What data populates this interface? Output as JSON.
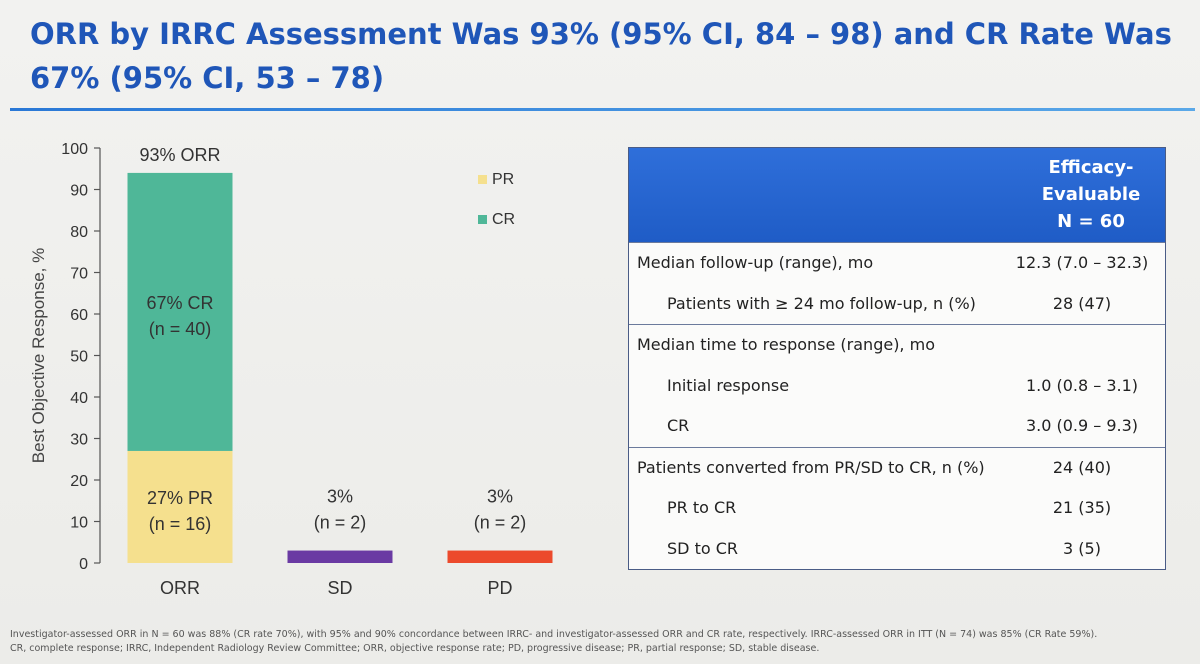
{
  "slide": {
    "title": "ORR by IRRC Assessment Was 93% (95% CI, 84 – 98) and CR Rate Was 67% (95% CI, 53 – 78)",
    "footnote_line1": "Investigator-assessed ORR in N = 60 was 88% (CR rate 70%), with 95% and 90% concordance between IRRC- and investigator-assessed ORR and CR rate, respectively. IRRC-assessed ORR in ITT (N = 74) was 85% (CR Rate 59%).",
    "footnote_line2": "CR, complete response; IRRC, Independent Radiology Review Committee; ORR, objective response rate; PD, progressive disease; PR, partial response; SD, stable disease."
  },
  "chart_data": {
    "type": "bar",
    "stacked": true,
    "ylabel": "Best Objective Response, %",
    "ylim": [
      0,
      100
    ],
    "yticks": [
      0,
      10,
      20,
      30,
      40,
      50,
      60,
      70,
      80,
      90,
      100
    ],
    "categories": [
      "ORR",
      "SD",
      "PD"
    ],
    "series": [
      {
        "name": "PR",
        "color": "#f5e08e",
        "values": [
          27,
          0,
          0
        ]
      },
      {
        "name": "CR",
        "color": "#4fb798",
        "values": [
          67,
          0,
          0
        ]
      },
      {
        "name": "",
        "color": "#6a3aa3",
        "values": [
          0,
          3,
          0
        ]
      },
      {
        "name": "",
        "color": "#ec4a2c",
        "values": [
          0,
          0,
          3
        ]
      }
    ],
    "legend": [
      "PR",
      "CR"
    ],
    "legend_position": "top-right",
    "segment_labels": [
      {
        "category": "ORR",
        "series": "PR",
        "line1": "27% PR",
        "line2": "(n = 16)"
      },
      {
        "category": "ORR",
        "series": "CR",
        "line1": "67% CR",
        "line2": "(n = 40)"
      }
    ],
    "top_labels": [
      {
        "category": "ORR",
        "line1": "93% ORR",
        "line2": ""
      },
      {
        "category": "SD",
        "line1": "3%",
        "line2": "(n = 2)"
      },
      {
        "category": "PD",
        "line1": "3%",
        "line2": "(n = 2)"
      }
    ]
  },
  "table": {
    "header": [
      "Efficacy-",
      "Evaluable",
      "N = 60"
    ],
    "rows": [
      {
        "label": "Median follow-up (range), mo",
        "value": "12.3 (7.0 – 32.3)",
        "indent": false,
        "separator": true
      },
      {
        "label": "Patients with ≥ 24 mo follow-up, n (%)",
        "value": "28 (47)",
        "indent": true,
        "separator": false
      },
      {
        "label": "Median time to response (range), mo",
        "value": "",
        "indent": false,
        "separator": true
      },
      {
        "label": "Initial response",
        "value": "1.0 (0.8 – 3.1)",
        "indent": true,
        "separator": false
      },
      {
        "label": "CR",
        "value": "3.0 (0.9 – 9.3)",
        "indent": true,
        "separator": false
      },
      {
        "label": "Patients converted from PR/SD to CR, n (%)",
        "value": "24 (40)",
        "indent": false,
        "separator": true
      },
      {
        "label": "PR to CR",
        "value": "21 (35)",
        "indent": true,
        "separator": false
      },
      {
        "label": "SD to CR",
        "value": "3 (5)",
        "indent": true,
        "separator": false
      }
    ]
  }
}
